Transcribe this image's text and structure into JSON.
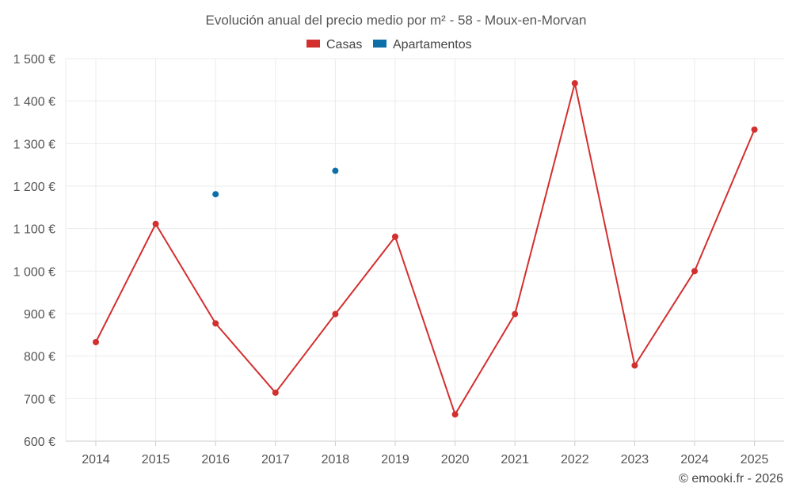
{
  "chart_data": {
    "type": "line",
    "title": "Evolución anual del precio medio por m² - 58 - Moux-en-Morvan",
    "categories": [
      "2014",
      "2015",
      "2016",
      "2017",
      "2018",
      "2019",
      "2020",
      "2021",
      "2022",
      "2023",
      "2024",
      "2025"
    ],
    "series": [
      {
        "name": "Casas",
        "color": "#d32f2f",
        "values": [
          833,
          1111,
          877,
          714,
          899,
          1081,
          663,
          899,
          1442,
          778,
          1000,
          1333
        ]
      },
      {
        "name": "Apartamentos",
        "color": "#0d6fa8",
        "values": [
          null,
          null,
          1181,
          null,
          1236,
          null,
          null,
          null,
          null,
          null,
          null,
          null
        ]
      }
    ],
    "ylim": [
      600,
      1500
    ],
    "yticks": [
      600,
      700,
      800,
      900,
      1000,
      1100,
      1200,
      1300,
      1400,
      1500
    ],
    "ytick_labels": [
      "600 €",
      "700 €",
      "800 €",
      "900 €",
      "1 000 €",
      "1 100 €",
      "1 200 €",
      "1 300 €",
      "1 400 €",
      "1 500 €"
    ],
    "xlabel": "",
    "ylabel": "",
    "grid": true,
    "legend_position": "top-center"
  },
  "credit": "© emooki.fr - 2026"
}
